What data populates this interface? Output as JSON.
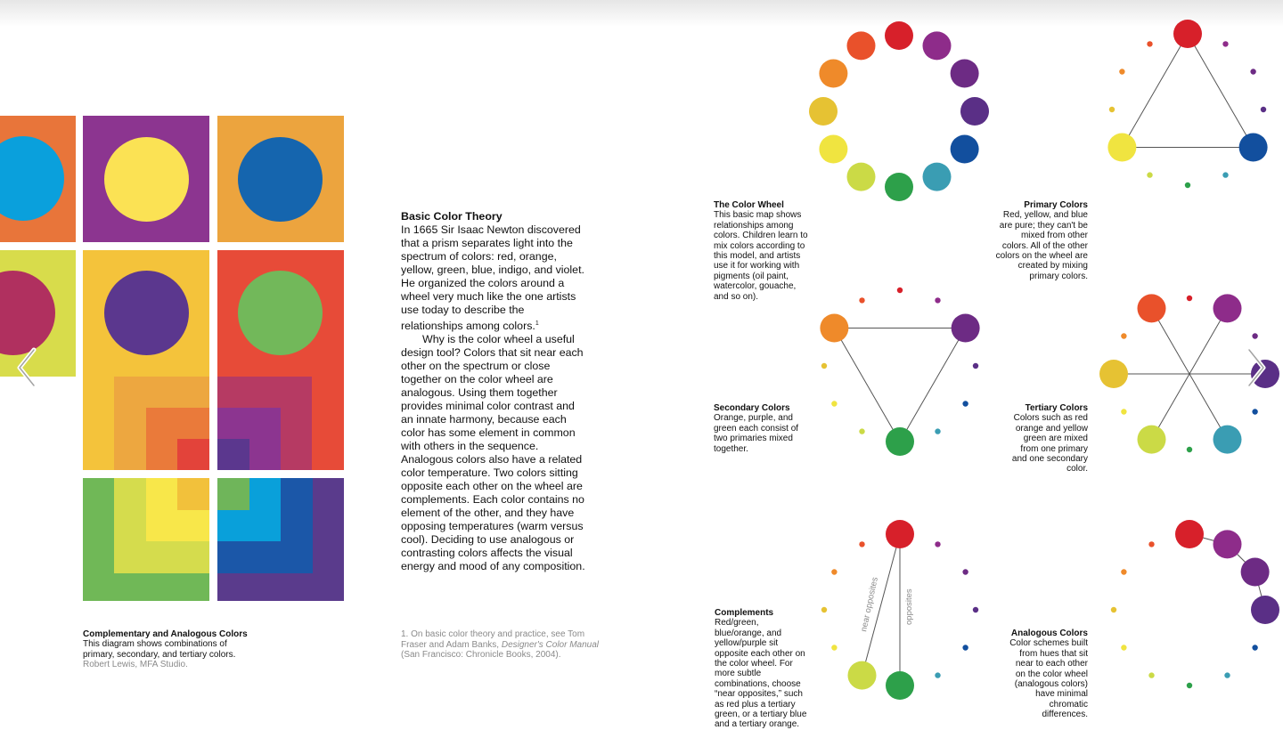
{
  "colors": {
    "red": "#d7202a",
    "red_orange": "#e9512b",
    "orange": "#ef8a2a",
    "yellow_orange": "#e6c233",
    "yellow": "#f0e440",
    "yellow_green": "#cbda46",
    "green": "#2da04a",
    "blue_green": "#3a9db3",
    "blue": "#124f9e",
    "blue_violet": "#5a2f86",
    "violet": "#6d2b84",
    "red_violet": "#8e2c8a"
  },
  "body": {
    "heading": "Basic Color Theory",
    "para1": "In 1665 Sir Isaac Newton discovered that a prism separates light into the spectrum of colors: red, orange, yellow, green, blue, indigo, and violet. He organized the colors around a wheel very much like the one artists use today to describe the relationships among colors.",
    "para1_note": "1",
    "para2": "Why is the color wheel a useful design tool? Colors that sit near each other on the spectrum or close together on the color wheel are analogous. Using them together provides minimal color contrast and an innate harmony, because each color has some element in common with others in the sequence. Analogous colors also have a related color temperature. Two colors sitting opposite each other on the wheel are complements. Each color contains no element of the other, and they have opposing temperatures (warm versus cool). Deciding to use analogous or contrasting colors affects the visual energy and mood of any composition."
  },
  "footnote": {
    "text_before": "1. On basic color theory and practice, see Tom Fraser and Adam Banks, ",
    "title": "Designer's Color Manual",
    "text_after": " (San Francisco: Chronicle  Books, 2004)."
  },
  "caption_left": {
    "title": "Complementary and Analogous Colors",
    "body": "This diagram shows combinations of primary, secondary, and tertiary colors.",
    "credit": "Robert Lewis, MFA Studio."
  },
  "captions": {
    "color_wheel": {
      "title": "The Color Wheel",
      "body": "This basic map shows relationships among colors. Children learn to mix colors according to this model, and artists use it for working with pigments (oil paint, watercolor, gouache, and so on)."
    },
    "primary": {
      "title": "Primary Colors",
      "body": "Red, yellow, and blue are pure; they can't be mixed from other colors. All of the other colors on the wheel are created by mixing primary colors."
    },
    "secondary": {
      "title": "Secondary Colors",
      "body": "Orange, purple, and green each consist of two primaries mixed together."
    },
    "tertiary": {
      "title": "Tertiary Colors",
      "body": "Colors such as red orange and yellow green are mixed from one  primary and one secondary color."
    },
    "complements": {
      "title": "Complements",
      "body": "Red/green, blue/orange, and yellow/purple sit opposite each other on the color wheel. For more subtle combinations, choose “near opposites,” such as red plus a tertiary green, or a tertiary blue and a tertiary orange."
    },
    "analogous": {
      "title": "Analogous Colors",
      "body": "Color schemes built from hues that sit near to each other on the color wheel (analogous colors) have minimal chromatic differences."
    }
  },
  "diagram_labels": {
    "near_opposites": "near opposites",
    "opposites": "opposites"
  },
  "nav": {
    "prev_icon": "chevron-left-icon",
    "next_icon": "chevron-right-icon"
  }
}
